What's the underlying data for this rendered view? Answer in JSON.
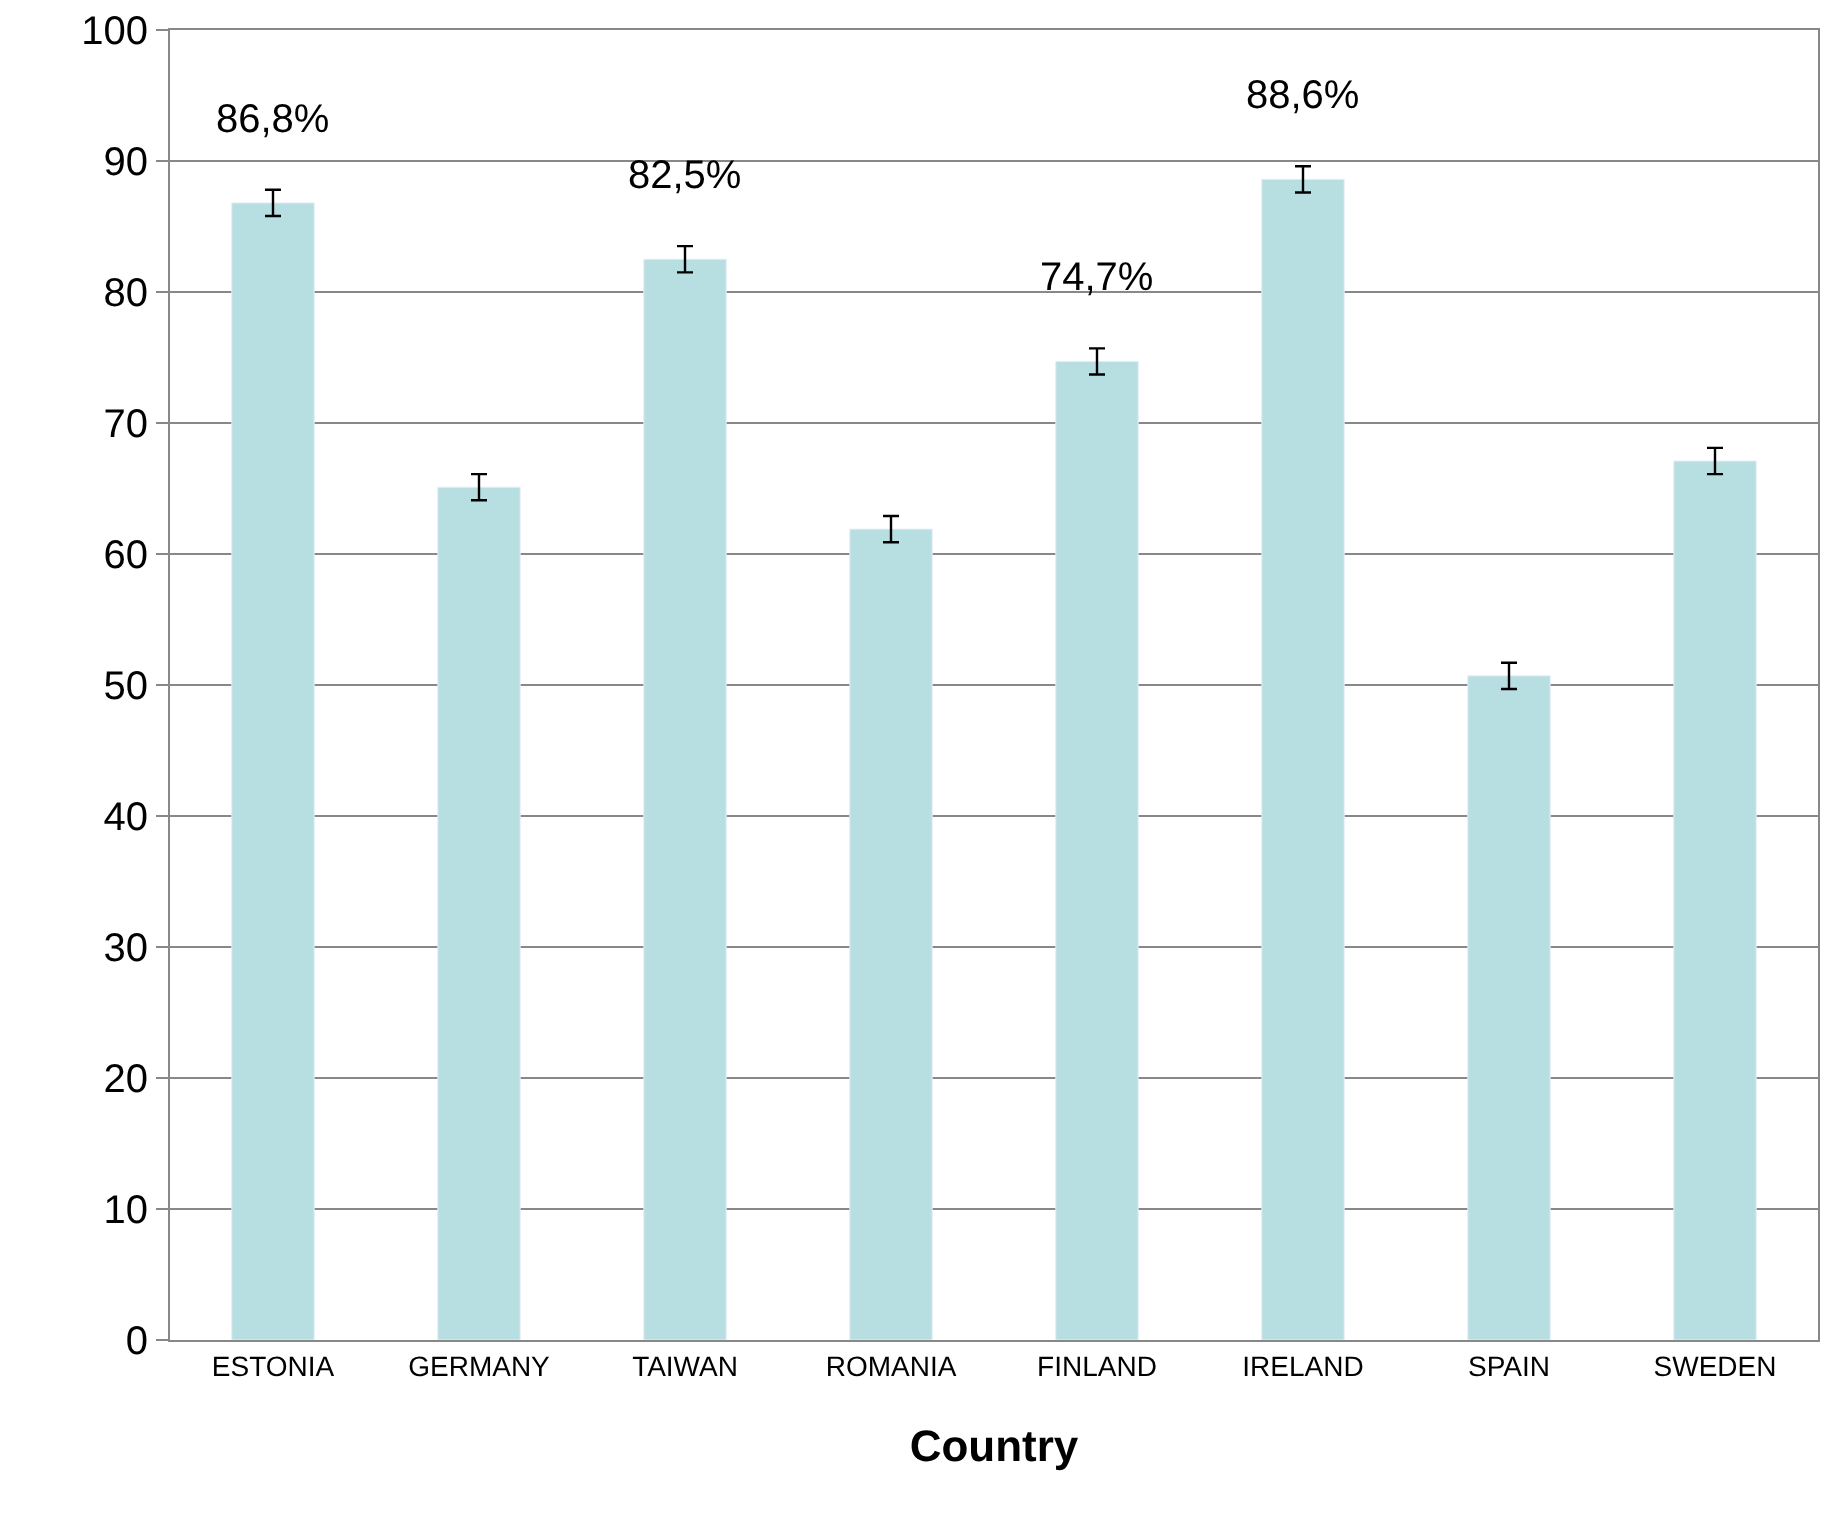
{
  "chart_data": {
    "type": "bar",
    "xlabel": "Country",
    "categories": [
      "ESTONIA",
      "GERMANY",
      "TAIWAN",
      "ROMANIA",
      "FINLAND",
      "IRELAND",
      "SPAIN",
      "SWEDEN"
    ],
    "values": [
      86.8,
      65.1,
      82.5,
      61.9,
      74.7,
      88.6,
      50.7,
      67.1
    ],
    "errors": [
      1,
      1,
      1,
      1,
      1,
      1,
      1,
      1
    ],
    "value_labels": [
      "86,8%",
      null,
      "82,5%",
      null,
      "74,7%",
      "88,6%",
      null,
      null
    ],
    "color": "#b7dfe2",
    "ylim": [
      0,
      100
    ],
    "yticks": [
      0,
      10,
      20,
      30,
      40,
      50,
      60,
      70,
      80,
      90,
      100
    ],
    "grid": "y"
  }
}
